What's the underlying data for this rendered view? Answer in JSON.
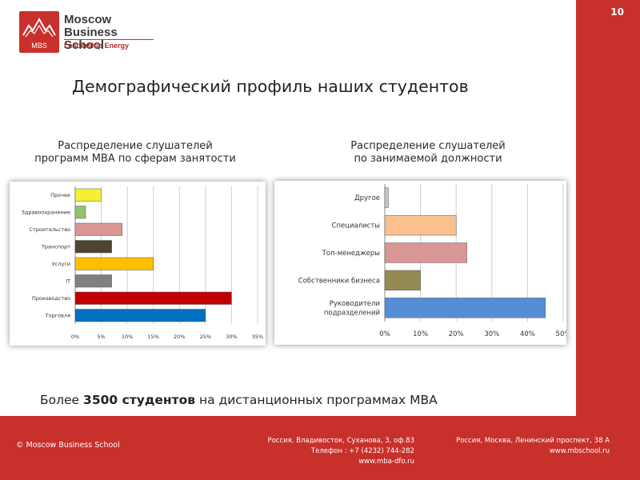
{
  "page": {
    "number": "10",
    "title": "Демографический профиль наших студентов"
  },
  "logo": {
    "name_line1": "Moscow",
    "name_line2": "Business School",
    "tagline": "Leadership Energy",
    "badge": "MBS"
  },
  "colors": {
    "brand": "#c8302c"
  },
  "chart_data": [
    {
      "type": "bar",
      "orientation": "horizontal",
      "title": "Распределение слушателей программ MBA по сферам занятости",
      "categories": [
        "Прочее",
        "Здравоохранение",
        "Строительство",
        "Транспорт",
        "Услуги",
        "IT",
        "Производство",
        "Торговля"
      ],
      "values": [
        5,
        2,
        9,
        7,
        15,
        7,
        30,
        25
      ],
      "colors": [
        "#f5f032",
        "#92c36e",
        "#da9694",
        "#4f442f",
        "#ffc000",
        "#808080",
        "#c00000",
        "#0070c0"
      ],
      "xlim": [
        0,
        35
      ],
      "xticks": [
        "0%",
        "5%",
        "10%",
        "15%",
        "20%",
        "25%",
        "30%",
        "35%"
      ],
      "grid": true
    },
    {
      "type": "bar",
      "orientation": "horizontal",
      "title": "Распределение слушателей по занимаемой должности",
      "categories": [
        "Другое",
        "Специалисты",
        "Топ-менеджеры",
        "Собственники бизнеса",
        "Руководители подразделений"
      ],
      "labels": [
        [
          "Другое"
        ],
        [
          "Специалисты"
        ],
        [
          "Топ-менеджеры"
        ],
        [
          "Собственники бизнеса"
        ],
        [
          "Руководители",
          "подразделений"
        ]
      ],
      "values": [
        1,
        20,
        23,
        10,
        45
      ],
      "colors": [
        "#c6c6c6",
        "#fac090",
        "#da9694",
        "#948a54",
        "#558ed5"
      ],
      "xlim": [
        0,
        50
      ],
      "xticks": [
        "0%",
        "10%",
        "20%",
        "30%",
        "40%",
        "50%"
      ],
      "grid": true
    }
  ],
  "footnote": {
    "before": "Более ",
    "bold": "3500 студентов",
    "after": " на дистанционных программах MBA"
  },
  "footer": {
    "copyright": "© Moscow Business School",
    "address1": [
      "Россия, Владивосток, Суханова, 3, оф.83",
      "Телефон : +7 (4232) 744-282",
      "www.mba-dfo.ru"
    ],
    "address2": [
      "Россия, Москва, Ленинский проспект, 38 А",
      "www.mbschool.ru"
    ]
  }
}
